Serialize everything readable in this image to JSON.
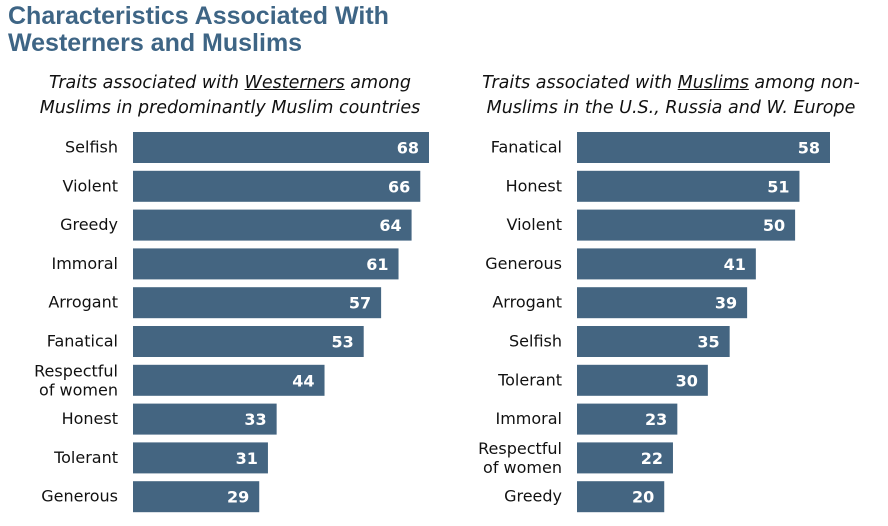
{
  "title": {
    "line1": "Characteristics Associated With",
    "line2": "Westerners and Muslims"
  },
  "panels": [
    {
      "subtitle_pre": "Traits associated with ",
      "subtitle_group": "Westerners",
      "subtitle_post1": " among",
      "subtitle_line2": "Muslims in predominantly Muslim countries"
    },
    {
      "subtitle_pre": "Traits associated with ",
      "subtitle_group": "Muslims",
      "subtitle_post1": " among non-",
      "subtitle_line2": "Muslims in the U.S., Russia and W. Europe"
    }
  ],
  "colors": {
    "bar": "#446581",
    "value_text": "#ffffff"
  },
  "chart_data": [
    {
      "type": "bar",
      "orientation": "horizontal",
      "title": "Traits associated with Westerners among Muslims in predominantly Muslim countries",
      "categories": [
        [
          "Selfish"
        ],
        [
          "Violent"
        ],
        [
          "Greedy"
        ],
        [
          "Immoral"
        ],
        [
          "Arrogant"
        ],
        [
          "Fanatical"
        ],
        [
          "Respectful",
          "of women"
        ],
        [
          "Honest"
        ],
        [
          "Tolerant"
        ],
        [
          "Generous"
        ]
      ],
      "values": [
        68,
        66,
        64,
        61,
        57,
        53,
        44,
        33,
        31,
        29
      ]
    },
    {
      "type": "bar",
      "orientation": "horizontal",
      "title": "Traits associated with Muslims among non-Muslims in the U.S., Russia and W. Europe",
      "categories": [
        [
          "Fanatical"
        ],
        [
          "Honest"
        ],
        [
          "Violent"
        ],
        [
          "Generous"
        ],
        [
          "Arrogant"
        ],
        [
          "Selfish"
        ],
        [
          "Tolerant"
        ],
        [
          "Immoral"
        ],
        [
          "Respectful",
          "of women"
        ],
        [
          "Greedy"
        ]
      ],
      "values": [
        58,
        51,
        50,
        41,
        39,
        35,
        30,
        23,
        22,
        20
      ]
    }
  ]
}
